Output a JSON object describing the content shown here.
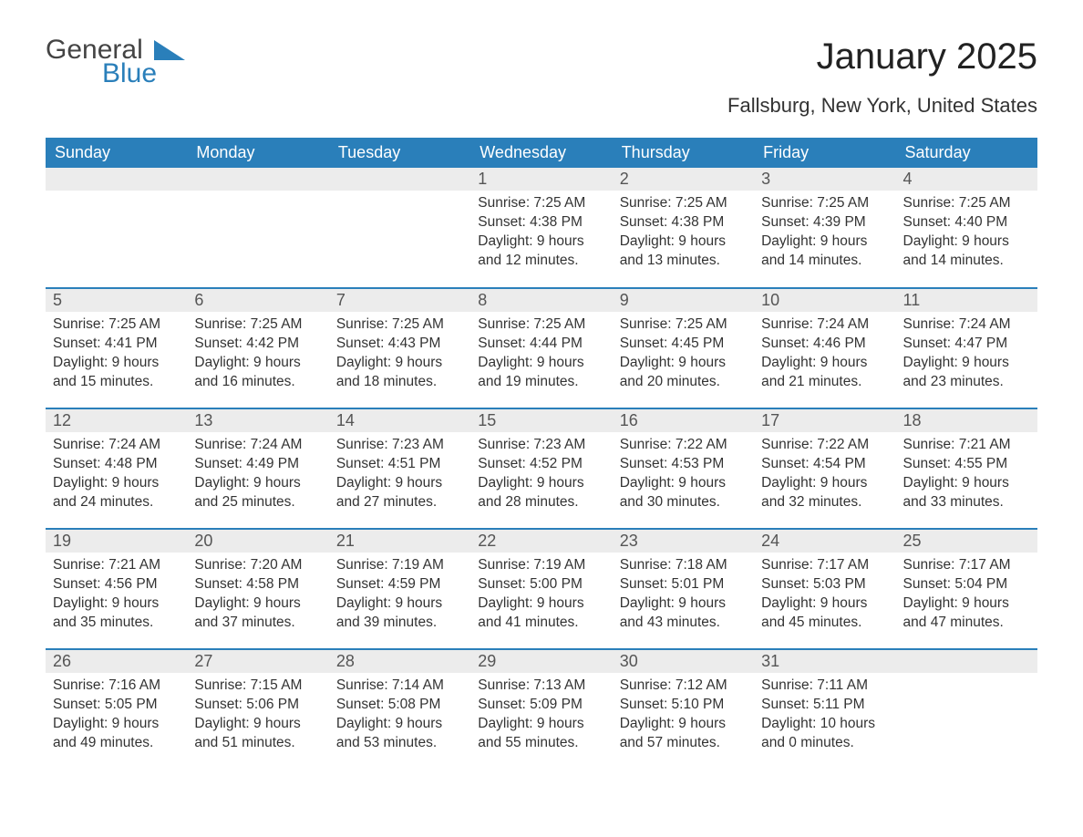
{
  "logo": {
    "word1": "General",
    "word2": "Blue",
    "triangle_color": "#2a7fba"
  },
  "title": "January 2025",
  "subtitle": "Fallsburg, New York, United States",
  "colors": {
    "header_bg": "#2a7fba",
    "header_text": "#ffffff",
    "daynum_bg": "#ececec",
    "row_divider": "#2a7fba",
    "body_text": "#333333"
  },
  "day_headers": [
    "Sunday",
    "Monday",
    "Tuesday",
    "Wednesday",
    "Thursday",
    "Friday",
    "Saturday"
  ],
  "weeks": [
    [
      null,
      null,
      null,
      {
        "n": "1",
        "sunrise": "7:25 AM",
        "sunset": "4:38 PM",
        "daylight": "9 hours and 12 minutes."
      },
      {
        "n": "2",
        "sunrise": "7:25 AM",
        "sunset": "4:38 PM",
        "daylight": "9 hours and 13 minutes."
      },
      {
        "n": "3",
        "sunrise": "7:25 AM",
        "sunset": "4:39 PM",
        "daylight": "9 hours and 14 minutes."
      },
      {
        "n": "4",
        "sunrise": "7:25 AM",
        "sunset": "4:40 PM",
        "daylight": "9 hours and 14 minutes."
      }
    ],
    [
      {
        "n": "5",
        "sunrise": "7:25 AM",
        "sunset": "4:41 PM",
        "daylight": "9 hours and 15 minutes."
      },
      {
        "n": "6",
        "sunrise": "7:25 AM",
        "sunset": "4:42 PM",
        "daylight": "9 hours and 16 minutes."
      },
      {
        "n": "7",
        "sunrise": "7:25 AM",
        "sunset": "4:43 PM",
        "daylight": "9 hours and 18 minutes."
      },
      {
        "n": "8",
        "sunrise": "7:25 AM",
        "sunset": "4:44 PM",
        "daylight": "9 hours and 19 minutes."
      },
      {
        "n": "9",
        "sunrise": "7:25 AM",
        "sunset": "4:45 PM",
        "daylight": "9 hours and 20 minutes."
      },
      {
        "n": "10",
        "sunrise": "7:24 AM",
        "sunset": "4:46 PM",
        "daylight": "9 hours and 21 minutes."
      },
      {
        "n": "11",
        "sunrise": "7:24 AM",
        "sunset": "4:47 PM",
        "daylight": "9 hours and 23 minutes."
      }
    ],
    [
      {
        "n": "12",
        "sunrise": "7:24 AM",
        "sunset": "4:48 PM",
        "daylight": "9 hours and 24 minutes."
      },
      {
        "n": "13",
        "sunrise": "7:24 AM",
        "sunset": "4:49 PM",
        "daylight": "9 hours and 25 minutes."
      },
      {
        "n": "14",
        "sunrise": "7:23 AM",
        "sunset": "4:51 PM",
        "daylight": "9 hours and 27 minutes."
      },
      {
        "n": "15",
        "sunrise": "7:23 AM",
        "sunset": "4:52 PM",
        "daylight": "9 hours and 28 minutes."
      },
      {
        "n": "16",
        "sunrise": "7:22 AM",
        "sunset": "4:53 PM",
        "daylight": "9 hours and 30 minutes."
      },
      {
        "n": "17",
        "sunrise": "7:22 AM",
        "sunset": "4:54 PM",
        "daylight": "9 hours and 32 minutes."
      },
      {
        "n": "18",
        "sunrise": "7:21 AM",
        "sunset": "4:55 PM",
        "daylight": "9 hours and 33 minutes."
      }
    ],
    [
      {
        "n": "19",
        "sunrise": "7:21 AM",
        "sunset": "4:56 PM",
        "daylight": "9 hours and 35 minutes."
      },
      {
        "n": "20",
        "sunrise": "7:20 AM",
        "sunset": "4:58 PM",
        "daylight": "9 hours and 37 minutes."
      },
      {
        "n": "21",
        "sunrise": "7:19 AM",
        "sunset": "4:59 PM",
        "daylight": "9 hours and 39 minutes."
      },
      {
        "n": "22",
        "sunrise": "7:19 AM",
        "sunset": "5:00 PM",
        "daylight": "9 hours and 41 minutes."
      },
      {
        "n": "23",
        "sunrise": "7:18 AM",
        "sunset": "5:01 PM",
        "daylight": "9 hours and 43 minutes."
      },
      {
        "n": "24",
        "sunrise": "7:17 AM",
        "sunset": "5:03 PM",
        "daylight": "9 hours and 45 minutes."
      },
      {
        "n": "25",
        "sunrise": "7:17 AM",
        "sunset": "5:04 PM",
        "daylight": "9 hours and 47 minutes."
      }
    ],
    [
      {
        "n": "26",
        "sunrise": "7:16 AM",
        "sunset": "5:05 PM",
        "daylight": "9 hours and 49 minutes."
      },
      {
        "n": "27",
        "sunrise": "7:15 AM",
        "sunset": "5:06 PM",
        "daylight": "9 hours and 51 minutes."
      },
      {
        "n": "28",
        "sunrise": "7:14 AM",
        "sunset": "5:08 PM",
        "daylight": "9 hours and 53 minutes."
      },
      {
        "n": "29",
        "sunrise": "7:13 AM",
        "sunset": "5:09 PM",
        "daylight": "9 hours and 55 minutes."
      },
      {
        "n": "30",
        "sunrise": "7:12 AM",
        "sunset": "5:10 PM",
        "daylight": "9 hours and 57 minutes."
      },
      {
        "n": "31",
        "sunrise": "7:11 AM",
        "sunset": "5:11 PM",
        "daylight": "10 hours and 0 minutes."
      },
      null
    ]
  ],
  "labels": {
    "sunrise": "Sunrise: ",
    "sunset": "Sunset: ",
    "daylight": "Daylight: "
  }
}
